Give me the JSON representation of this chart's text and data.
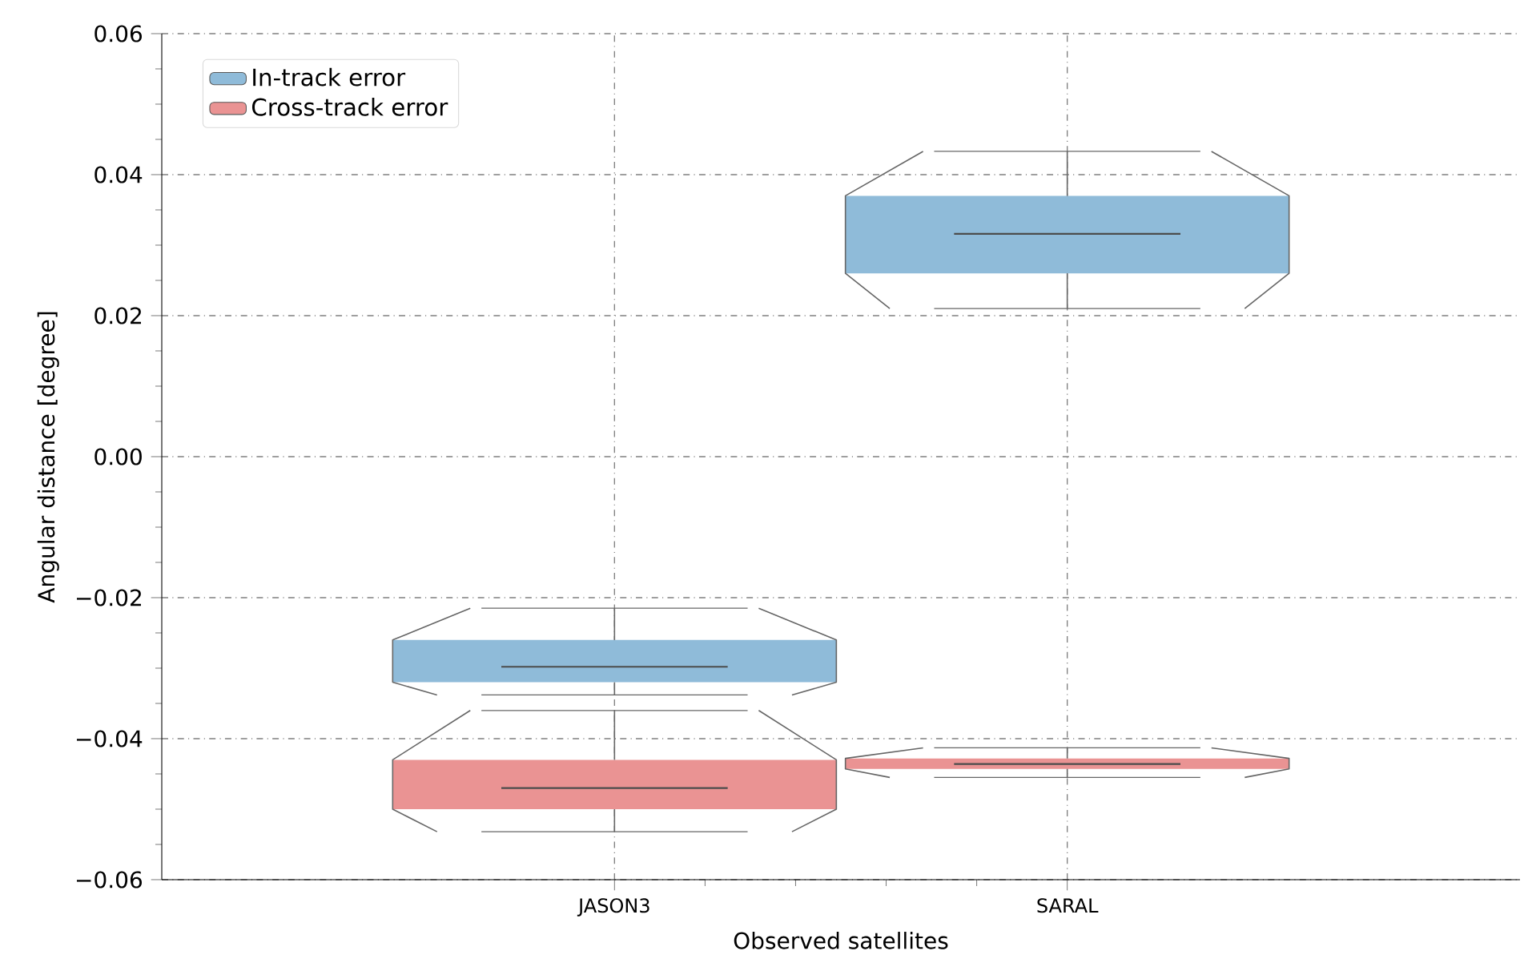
{
  "chart_data": {
    "type": "box",
    "xlabel": "Observed satellites",
    "ylabel": "Angular distance [degree]",
    "categories": [
      "JASON3",
      "SARAL"
    ],
    "series": [
      {
        "name": "In-track error",
        "color": "#8fbbd9",
        "boxes": [
          {
            "low": -0.0338,
            "q1": -0.032,
            "median": -0.0298,
            "q3": -0.026,
            "high": -0.0215
          },
          {
            "low": 0.021,
            "q1": 0.026,
            "median": 0.0316,
            "q3": 0.037,
            "high": 0.0433
          }
        ]
      },
      {
        "name": "Cross-track error",
        "color": "#ea9393",
        "boxes": [
          {
            "low": -0.0532,
            "q1": -0.05,
            "median": -0.047,
            "q3": -0.043,
            "high": -0.036
          },
          {
            "low": -0.0455,
            "q1": -0.0443,
            "median": -0.0436,
            "q3": -0.0428,
            "high": -0.0413
          }
        ]
      }
    ],
    "ylim": [
      -0.06,
      0.06
    ],
    "yticks": [
      {
        "value": -0.06,
        "label": "−0.06"
      },
      {
        "value": -0.04,
        "label": "−0.04"
      },
      {
        "value": -0.02,
        "label": "−0.02"
      },
      {
        "value": 0,
        "label": "0.00"
      },
      {
        "value": 0.02,
        "label": "0.02"
      },
      {
        "value": 0.04,
        "label": "0.04"
      },
      {
        "value": 0.06,
        "label": "0.06"
      }
    ],
    "grid": true,
    "legend": "top left"
  }
}
